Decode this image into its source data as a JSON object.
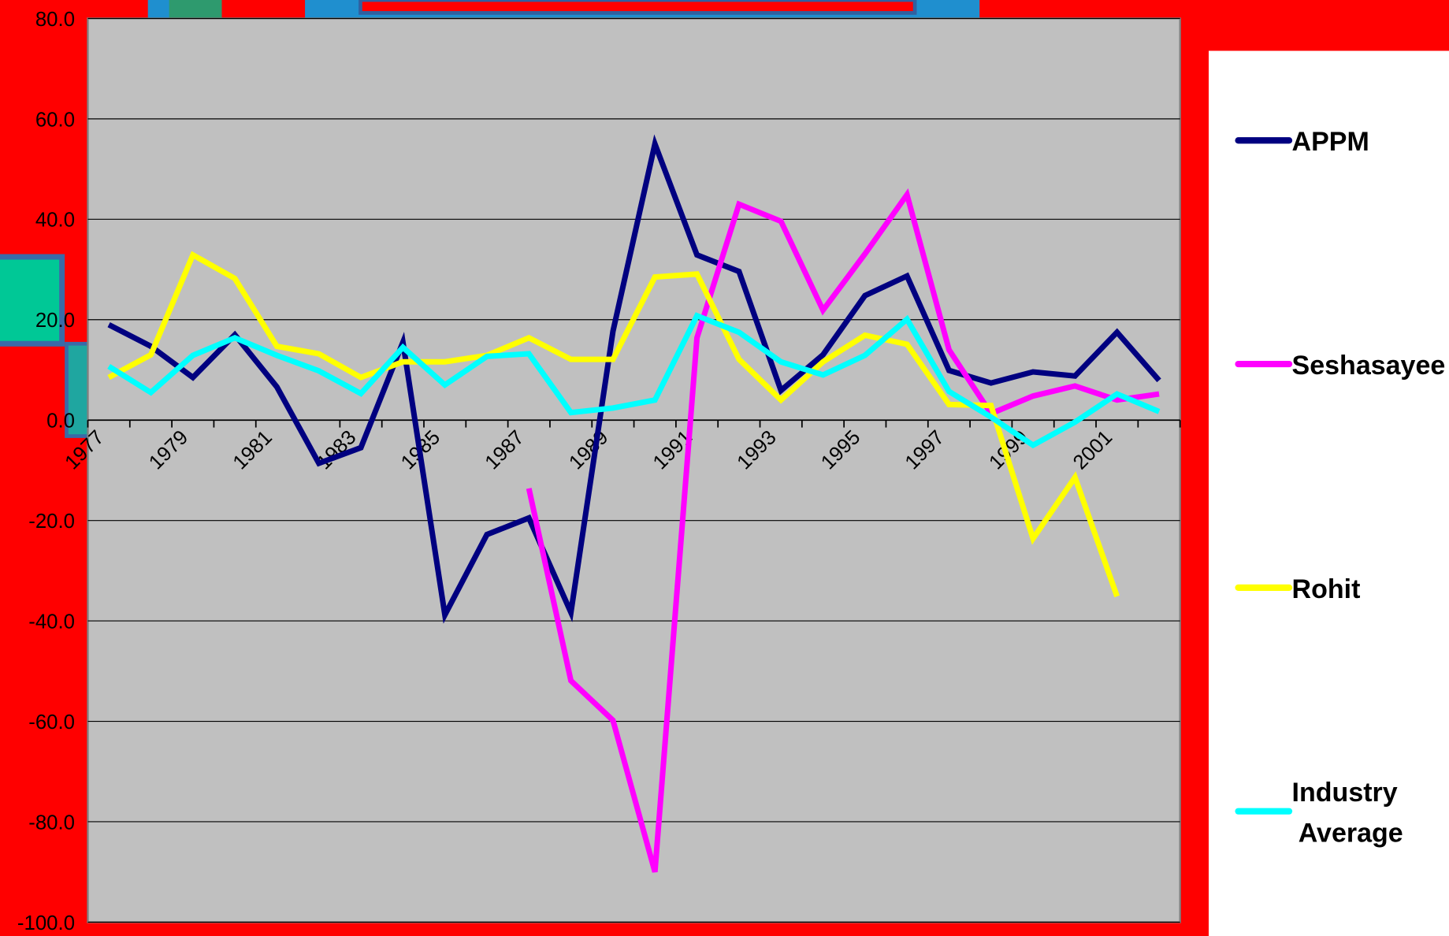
{
  "chart_data": {
    "type": "line",
    "categories": [
      "1977",
      null,
      "1979",
      null,
      "1981",
      null,
      "1983",
      null,
      "1985",
      null,
      "1987",
      null,
      "1989",
      null,
      "1991",
      null,
      "1993",
      null,
      "1995",
      null,
      "1997",
      null,
      "1999",
      null,
      "2001",
      null
    ],
    "series": [
      {
        "name": "APPM",
        "color": "#000080",
        "values": [
          19,
          14.7,
          8.5,
          17,
          6.6,
          -8.6,
          -5.5,
          15.5,
          -38.8,
          -22.8,
          -19.5,
          -38.3,
          17.7,
          55,
          32.9,
          29.6,
          5.9,
          13,
          24.8,
          28.7,
          9.9,
          7.4,
          9.6,
          8.8,
          17.5,
          7.9
        ]
      },
      {
        "name": "Seshasayee",
        "color": "#ff00ff",
        "values": [
          null,
          null,
          null,
          null,
          null,
          null,
          null,
          null,
          null,
          null,
          -13.6,
          -51.9,
          -59.8,
          -90,
          16.4,
          43,
          39.6,
          21.9,
          33.1,
          44.9,
          14,
          1.3,
          4.8,
          6.8,
          4,
          5.2
        ]
      },
      {
        "name": "Rohit",
        "color": "#ffff00",
        "values": [
          8.5,
          13,
          32.9,
          28.2,
          14.7,
          13.2,
          8.5,
          11.6,
          11.6,
          12.9,
          16.4,
          12.1,
          12.1,
          28.5,
          29.1,
          12.1,
          4,
          11.6,
          16.9,
          15.1,
          3.1,
          2.9,
          -23.6,
          -11.4,
          -35.1,
          null
        ]
      },
      {
        "name": "Industry Average",
        "color": "#00ffff",
        "values": [
          10.7,
          5.5,
          12.9,
          16.4,
          12.9,
          9.8,
          5.3,
          14.5,
          7,
          12.7,
          13.2,
          1.5,
          2.4,
          4,
          20.8,
          17.5,
          11.6,
          9,
          12.9,
          20.1,
          5.7,
          0.6,
          -5,
          -0.4,
          5.2,
          1.7
        ]
      }
    ],
    "ylim": [
      -100,
      80
    ],
    "yticks": [
      {
        "value": -100,
        "label": "-100.0"
      },
      {
        "value": -80,
        "label": "-80.0"
      },
      {
        "value": -60,
        "label": "-60.0"
      },
      {
        "value": -40,
        "label": "-40.0"
      },
      {
        "value": -20,
        "label": "-20.0"
      },
      {
        "value": 0,
        "label": "0.0"
      },
      {
        "value": 20,
        "label": "20.0"
      },
      {
        "value": 40,
        "label": "40.0"
      },
      {
        "value": 60,
        "label": "60.0"
      },
      {
        "value": 80,
        "label": "80.0"
      }
    ],
    "grid": true,
    "legend": "right"
  }
}
